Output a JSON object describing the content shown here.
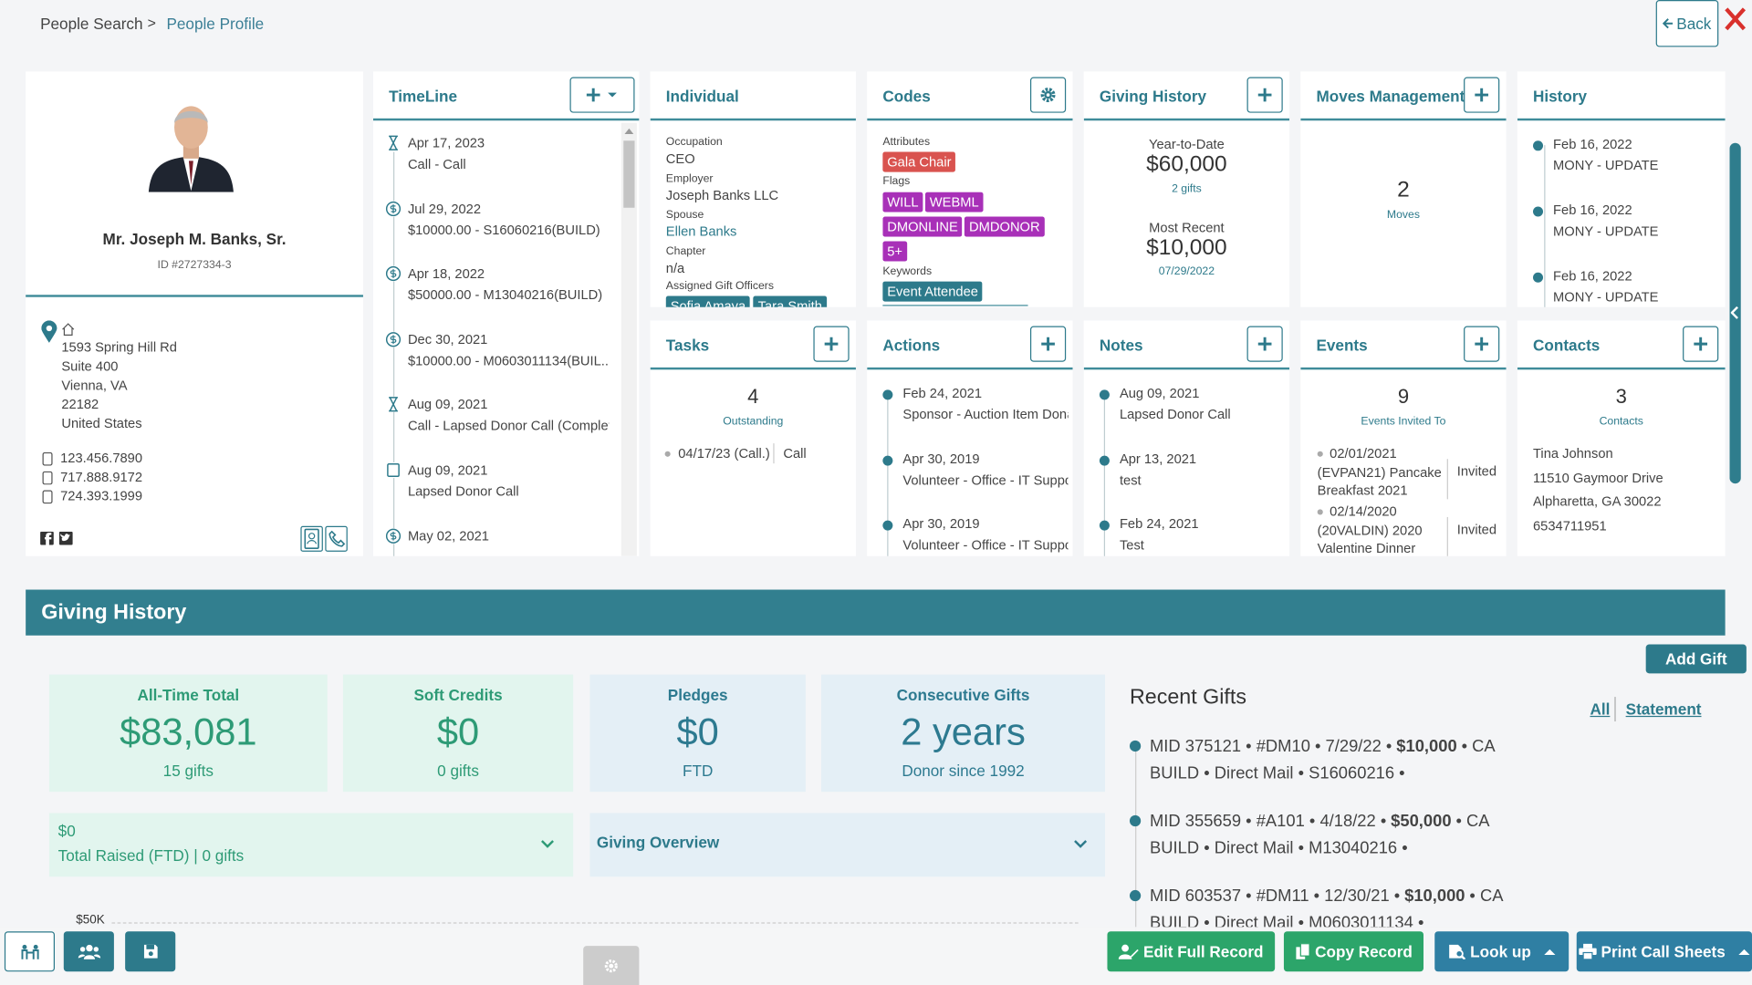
{
  "breadcrumb": {
    "parent": "People Search",
    "separator": ">",
    "current": "People Profile"
  },
  "back": "Back",
  "profile": {
    "name": "Mr. Joseph M. Banks, Sr.",
    "id": "ID #2727334-3",
    "address": [
      "1593 Spring Hill Rd",
      "Suite 400",
      "Vienna, VA",
      "22182",
      "United States"
    ],
    "phones": [
      "123.456.7890",
      "717.888.9172",
      "724.393.1999"
    ]
  },
  "timeline": {
    "title": "TimeLine",
    "items": [
      {
        "date": "Apr 17, 2023",
        "text": "Call - Call"
      },
      {
        "date": "Jul 29, 2022",
        "text": "$10000.00 - S16060216(BUILD)"
      },
      {
        "date": "Apr 18, 2022",
        "text": "$50000.00 - M13040216(BUILD)"
      },
      {
        "date": "Dec 30, 2021",
        "text": "$10000.00 - M0603011134(BUIL..."
      },
      {
        "date": "Aug 09, 2021",
        "text": "Call - Lapsed Donor Call (Complet..."
      },
      {
        "date": "Aug 09, 2021",
        "text": "Lapsed Donor Call"
      },
      {
        "date": "May 02, 2021"
      }
    ]
  },
  "individual": {
    "title": "Individual",
    "fields": [
      {
        "label": "Occupation",
        "value": "CEO"
      },
      {
        "label": "Employer",
        "value": "Joseph Banks LLC"
      },
      {
        "label": "Spouse",
        "value": "Ellen Banks"
      },
      {
        "label": "Chapter",
        "value": "n/a"
      }
    ],
    "officers_label": "Assigned Gift Officers",
    "officers": [
      "Sofia Amaya",
      "Tara Smith"
    ]
  },
  "codes": {
    "title": "Codes",
    "attributes_label": "Attributes",
    "attributes": [
      "Gala Chair"
    ],
    "flags_label": "Flags",
    "flags": [
      "WILL",
      "WEBML",
      "DMONLINE",
      "DMDONOR",
      "5+"
    ],
    "keywords_label": "Keywords",
    "keywords": [
      "Event Attendee"
    ]
  },
  "giving_card": {
    "title": "Giving History",
    "ytd_label": "Year-to-Date",
    "ytd": "$60,000",
    "ytd_count": "2 gifts",
    "recent_label": "Most Recent",
    "recent": "$10,000",
    "recent_date": "07/29/2022"
  },
  "moves": {
    "title": "Moves Management",
    "count": "2",
    "label": "Moves"
  },
  "history": {
    "title": "History",
    "items": [
      {
        "date": "Feb 16, 2022",
        "text": "MONY - UPDATE"
      },
      {
        "date": "Feb 16, 2022",
        "text": "MONY - UPDATE"
      },
      {
        "date": "Feb 16, 2022",
        "text": "MONY - UPDATE"
      }
    ]
  },
  "tasks": {
    "title": "Tasks",
    "count": "4",
    "label": "Outstanding",
    "items": [
      {
        "date": "04/17/23 (Call.)",
        "type": "Call"
      }
    ]
  },
  "actions": {
    "title": "Actions",
    "items": [
      {
        "date": "Feb 24, 2021",
        "text": "Sponsor - Auction Item Donatic"
      },
      {
        "date": "Apr 30, 2019",
        "text": "Volunteer - Office - IT Support"
      },
      {
        "date": "Apr 30, 2019",
        "text": "Volunteer - Office - IT Support"
      }
    ]
  },
  "notes": {
    "title": "Notes",
    "items": [
      {
        "date": "Aug 09, 2021",
        "text": "Lapsed Donor Call"
      },
      {
        "date": "Apr 13, 2021",
        "text": "test"
      },
      {
        "date": "Feb 24, 2021",
        "text": "Test"
      }
    ]
  },
  "events": {
    "title": "Events",
    "count": "9",
    "label": "Events Invited To",
    "items": [
      {
        "date": "02/01/2021",
        "name": "(EVPAN21) Pancake Breakfast 2021",
        "status": "Invited"
      },
      {
        "date": "02/14/2020",
        "name": "(20VALDIN) 2020 Valentine Dinner",
        "status": "Invited"
      }
    ]
  },
  "contacts": {
    "title": "Contacts",
    "count": "3",
    "label": "Contacts",
    "lines": [
      "Tina Johnson",
      "11510 Gaymoor Drive",
      "Alpharetta, GA 30022",
      "6534711951"
    ]
  },
  "giving": {
    "title": "Giving History",
    "add": "Add Gift",
    "stats": [
      {
        "label": "All-Time Total",
        "value": "$83,081",
        "sub": "15 gifts"
      },
      {
        "label": "Soft Credits",
        "value": "$0",
        "sub": "0 gifts"
      },
      {
        "label": "Pledges",
        "value": "$0",
        "sub": "FTD"
      },
      {
        "label": "Consecutive Gifts",
        "value": "2 years",
        "sub": "Donor since 1992"
      }
    ],
    "raised": {
      "value": "$0",
      "label": "Total Raised (FTD) | 0 gifts"
    },
    "overview": "Giving Overview",
    "chart_tick": "$50K",
    "recent": {
      "title": "Recent Gifts",
      "all": "All",
      "statement": "Statement",
      "gifts": [
        {
          "line1": "MID 375121 • #DM10 • 7/29/22 •",
          "amount": "$10,000",
          "suffix": "• CA",
          "line2": "BUILD • Direct Mail • S16060216 •"
        },
        {
          "line1": "MID 355659 • #A101 • 4/18/22 •",
          "amount": "$50,000",
          "suffix": "• CA",
          "line2": "BUILD • Direct Mail • M13040216 •"
        },
        {
          "line1": "MID 603537 • #DM11 • 12/30/21 •",
          "amount": "$10,000",
          "suffix": "• CA",
          "line2": "BUILD • Direct Mail • M0603011134 •"
        }
      ]
    }
  },
  "footer": {
    "edit": "Edit Full Record",
    "copy": "Copy Record",
    "lookup": "Look up",
    "print": "Print Call Sheets"
  }
}
